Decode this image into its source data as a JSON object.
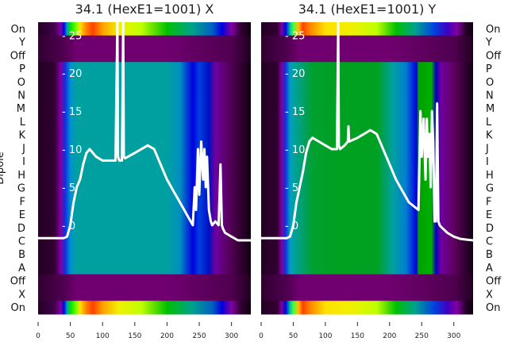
{
  "chart_data": [
    {
      "type": "heatmap",
      "title": "34.1 (HexE1=1001) X",
      "ylabel": "Dipole",
      "row_labels": [
        "On",
        "Y",
        "Off",
        "P",
        "O",
        "N",
        "M",
        "L",
        "K",
        "J",
        "I",
        "H",
        "G",
        "F",
        "E",
        "D",
        "C",
        "B",
        "A",
        "Off",
        "X",
        "On"
      ],
      "x_ticks": [
        0,
        50,
        100,
        150,
        200,
        250,
        300
      ],
      "xlim": [
        0,
        330
      ],
      "overlay_yticks": [
        0,
        5,
        10,
        15,
        20,
        25
      ],
      "overlay_ylim": [
        -11.7,
        26.7
      ],
      "overlay_traces": [
        {
          "x": [
            0,
            20,
            40,
            45,
            50,
            55,
            60,
            65,
            70,
            75,
            80,
            90,
            100,
            110,
            120,
            123,
            124,
            126,
            130,
            132,
            133,
            135,
            150,
            170,
            180,
            190,
            200,
            210,
            220,
            230,
            240,
            243,
            245,
            248,
            250,
            253,
            256,
            258,
            260,
            262,
            265,
            268,
            270,
            275,
            280,
            283,
            285,
            287,
            290,
            300,
            310,
            320,
            330
          ],
          "y": [
            -1.7,
            -1.7,
            -1.7,
            -1.5,
            0,
            3,
            5,
            6,
            8,
            9.5,
            10,
            9,
            8.5,
            8.5,
            8.5,
            26.7,
            9,
            8.5,
            8.5,
            26.7,
            9,
            8.8,
            9.5,
            10.5,
            10,
            8,
            6,
            4.5,
            3,
            1.5,
            0,
            5,
            2,
            10,
            4,
            11,
            6,
            10,
            5,
            9,
            2,
            0.5,
            0,
            0.5,
            0,
            8,
            0,
            -0.5,
            -1,
            -1.5,
            -2,
            -2,
            -2
          ]
        }
      ],
      "row_profiles": {
        "on": [
          [
            0,
            "#240024"
          ],
          [
            25,
            "#40004a"
          ],
          [
            35,
            "#8000a0"
          ],
          [
            40,
            "#0000e0"
          ],
          [
            45,
            "#00a0c0"
          ],
          [
            50,
            "#00e000"
          ],
          [
            60,
            "#80ff00"
          ],
          [
            65,
            "#ffe000"
          ],
          [
            75,
            "#ff8000"
          ],
          [
            85,
            "#ff4000"
          ],
          [
            100,
            "#ffa000"
          ],
          [
            125,
            "#f0f000"
          ],
          [
            160,
            "#c0ff00"
          ],
          [
            200,
            "#00c000"
          ],
          [
            240,
            "#00a090"
          ],
          [
            270,
            "#0060c0"
          ],
          [
            285,
            "#0000e0"
          ],
          [
            300,
            "#8000a0"
          ],
          [
            315,
            "#300030"
          ],
          [
            330,
            "#100010"
          ]
        ],
        "dark": [
          [
            0,
            "#300030"
          ],
          [
            40,
            "#500050"
          ],
          [
            60,
            "#700070"
          ],
          [
            200,
            "#700070"
          ],
          [
            300,
            "#500050"
          ],
          [
            330,
            "#200020"
          ]
        ],
        "main": [
          [
            0,
            "#240024"
          ],
          [
            25,
            "#300030"
          ],
          [
            35,
            "#8000a0"
          ],
          [
            42,
            "#1030e0"
          ],
          [
            50,
            "#0090d0"
          ],
          [
            60,
            "#00a0a0"
          ],
          [
            200,
            "#00a0a0"
          ],
          [
            220,
            "#0090c0"
          ],
          [
            240,
            "#0000e0"
          ],
          [
            250,
            "#0040e0"
          ],
          [
            265,
            "#0010c0"
          ],
          [
            275,
            "#7000a0"
          ],
          [
            300,
            "#500050"
          ],
          [
            330,
            "#100010"
          ]
        ]
      },
      "row_types": [
        "on",
        "dark",
        "dark",
        "main",
        "main",
        "main",
        "main",
        "main",
        "main",
        "main",
        "main",
        "main",
        "main",
        "main",
        "main",
        "main",
        "main",
        "main",
        "main",
        "dark",
        "dark",
        "on"
      ]
    },
    {
      "type": "heatmap",
      "title": "34.1 (HexE1=1001) Y",
      "row_labels": [
        "On",
        "Y",
        "Off",
        "P",
        "O",
        "N",
        "M",
        "L",
        "K",
        "J",
        "I",
        "H",
        "G",
        "F",
        "E",
        "D",
        "C",
        "B",
        "A",
        "Off",
        "X",
        "On"
      ],
      "x_ticks": [
        0,
        50,
        100,
        150,
        200,
        250,
        300
      ],
      "xlim": [
        0,
        330
      ],
      "overlay_yticks": [
        0,
        5,
        10,
        15,
        20,
        25
      ],
      "overlay_ylim": [
        -11.7,
        26.7
      ],
      "overlay_traces": [
        {
          "x": [
            0,
            20,
            40,
            45,
            50,
            55,
            60,
            65,
            70,
            75,
            80,
            90,
            100,
            110,
            118,
            120,
            121,
            123,
            130,
            135,
            136,
            137,
            150,
            160,
            170,
            180,
            190,
            200,
            210,
            220,
            230,
            245,
            248,
            250,
            253,
            256,
            258,
            260,
            262,
            264,
            266,
            268,
            270,
            272,
            274,
            276,
            278,
            280,
            290,
            300,
            310,
            320,
            330
          ],
          "y": [
            -1.7,
            -1.7,
            -1.7,
            -1.5,
            0,
            3,
            5,
            7,
            9.5,
            11,
            11.5,
            11,
            10.5,
            10,
            10,
            26.7,
            10.5,
            10,
            10.5,
            11,
            13,
            11,
            11.5,
            12,
            12.5,
            12,
            10,
            8,
            6,
            4.5,
            3,
            2,
            15,
            9,
            14,
            6,
            14,
            9,
            12,
            5,
            15,
            11,
            0.5,
            0.5,
            16,
            0.5,
            0,
            -0.2,
            -1,
            -1.5,
            -1.8,
            -1.9,
            -2
          ]
        }
      ],
      "row_profiles": {
        "on": [
          [
            0,
            "#240024"
          ],
          [
            25,
            "#300030"
          ],
          [
            32,
            "#8000a0"
          ],
          [
            38,
            "#0000e0"
          ],
          [
            45,
            "#00c0a0"
          ],
          [
            50,
            "#40ff40"
          ],
          [
            58,
            "#ffc000"
          ],
          [
            65,
            "#ff4000"
          ],
          [
            75,
            "#ff8000"
          ],
          [
            100,
            "#ffe000"
          ],
          [
            140,
            "#f0f000"
          ],
          [
            180,
            "#c0ff00"
          ],
          [
            210,
            "#00c000"
          ],
          [
            240,
            "#00a090"
          ],
          [
            270,
            "#0040e0"
          ],
          [
            290,
            "#4000c0"
          ],
          [
            305,
            "#8000a0"
          ],
          [
            320,
            "#200020"
          ],
          [
            330,
            "#100010"
          ]
        ],
        "dark": [
          [
            0,
            "#300030"
          ],
          [
            40,
            "#500050"
          ],
          [
            60,
            "#700070"
          ],
          [
            200,
            "#700070"
          ],
          [
            300,
            "#500050"
          ],
          [
            330,
            "#200020"
          ]
        ],
        "main": [
          [
            0,
            "#240024"
          ],
          [
            25,
            "#300030"
          ],
          [
            32,
            "#8000a0"
          ],
          [
            38,
            "#1030e0"
          ],
          [
            45,
            "#00a0c0"
          ],
          [
            55,
            "#00a090"
          ],
          [
            80,
            "#00a030"
          ],
          [
            120,
            "#00a020"
          ],
          [
            180,
            "#00a020"
          ],
          [
            205,
            "#00a0a0"
          ],
          [
            225,
            "#0080d0"
          ],
          [
            242,
            "#0000e0"
          ],
          [
            245,
            "#00a000"
          ],
          [
            265,
            "#00b000"
          ],
          [
            272,
            "#0000c0"
          ],
          [
            280,
            "#7000a0"
          ],
          [
            300,
            "#600060"
          ],
          [
            330,
            "#100010"
          ]
        ]
      },
      "row_types": [
        "on",
        "dark",
        "dark",
        "main",
        "main",
        "main",
        "main",
        "main",
        "main",
        "main",
        "main",
        "main",
        "main",
        "main",
        "main",
        "main",
        "main",
        "main",
        "main",
        "dark",
        "dark",
        "on"
      ]
    }
  ]
}
